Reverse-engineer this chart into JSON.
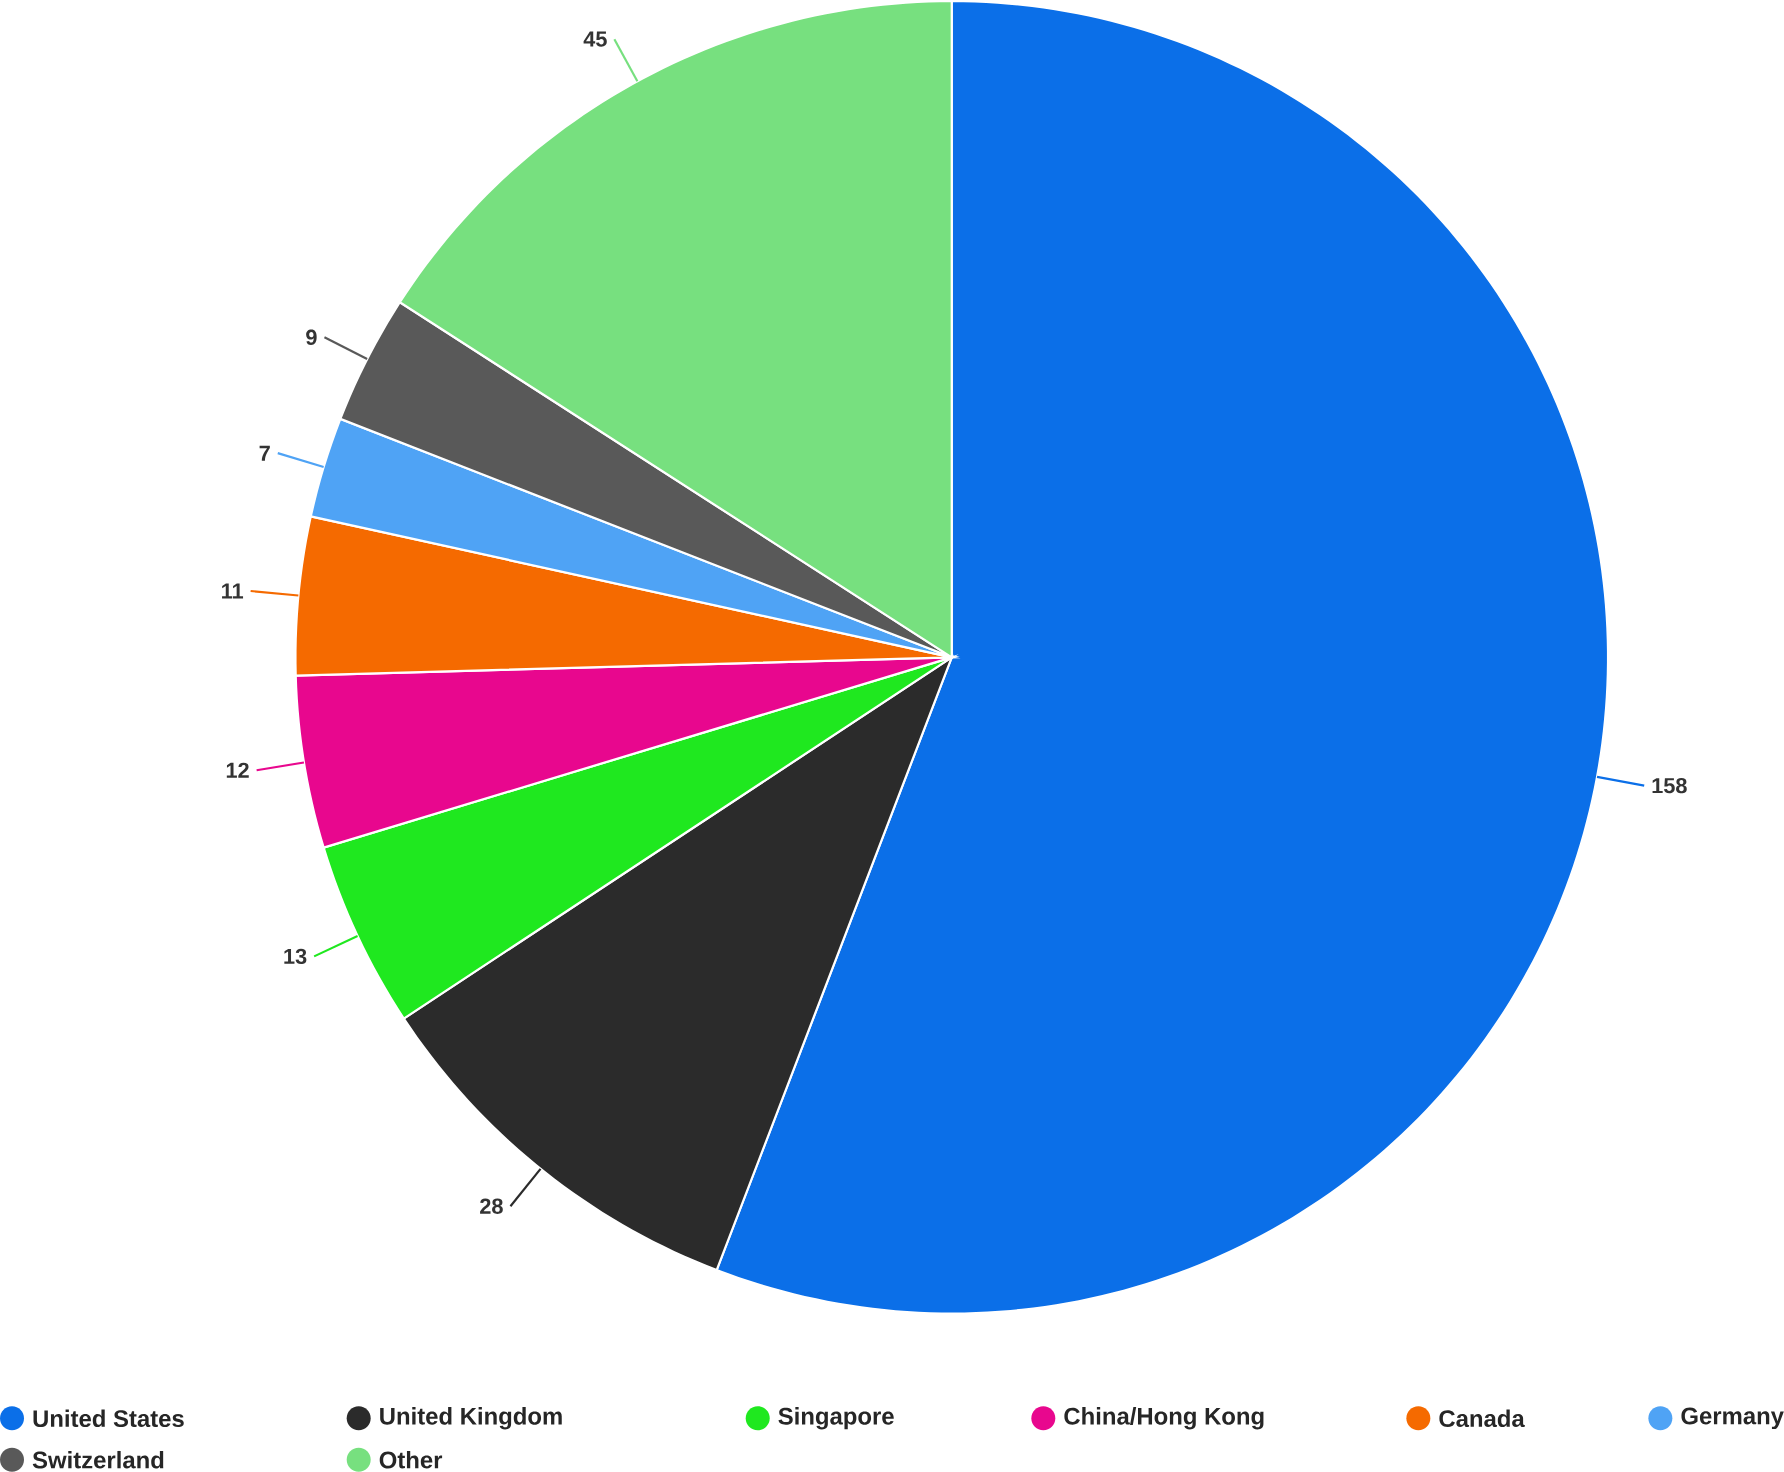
{
  "chart_data": {
    "type": "pie",
    "categories": [
      "United States",
      "United Kingdom",
      "Singapore",
      "China/Hong Kong",
      "Canada",
      "Germany",
      "Switzerland",
      "Other"
    ],
    "values": [
      158,
      28,
      13,
      12,
      11,
      7,
      9,
      45
    ],
    "colors": [
      "#0b6fe8",
      "#2b2b2b",
      "#1fe81f",
      "#e8078e",
      "#f56a00",
      "#4fa3f5",
      "#595959",
      "#77e07f"
    ],
    "data_labels": true,
    "legend": "bottom"
  }
}
